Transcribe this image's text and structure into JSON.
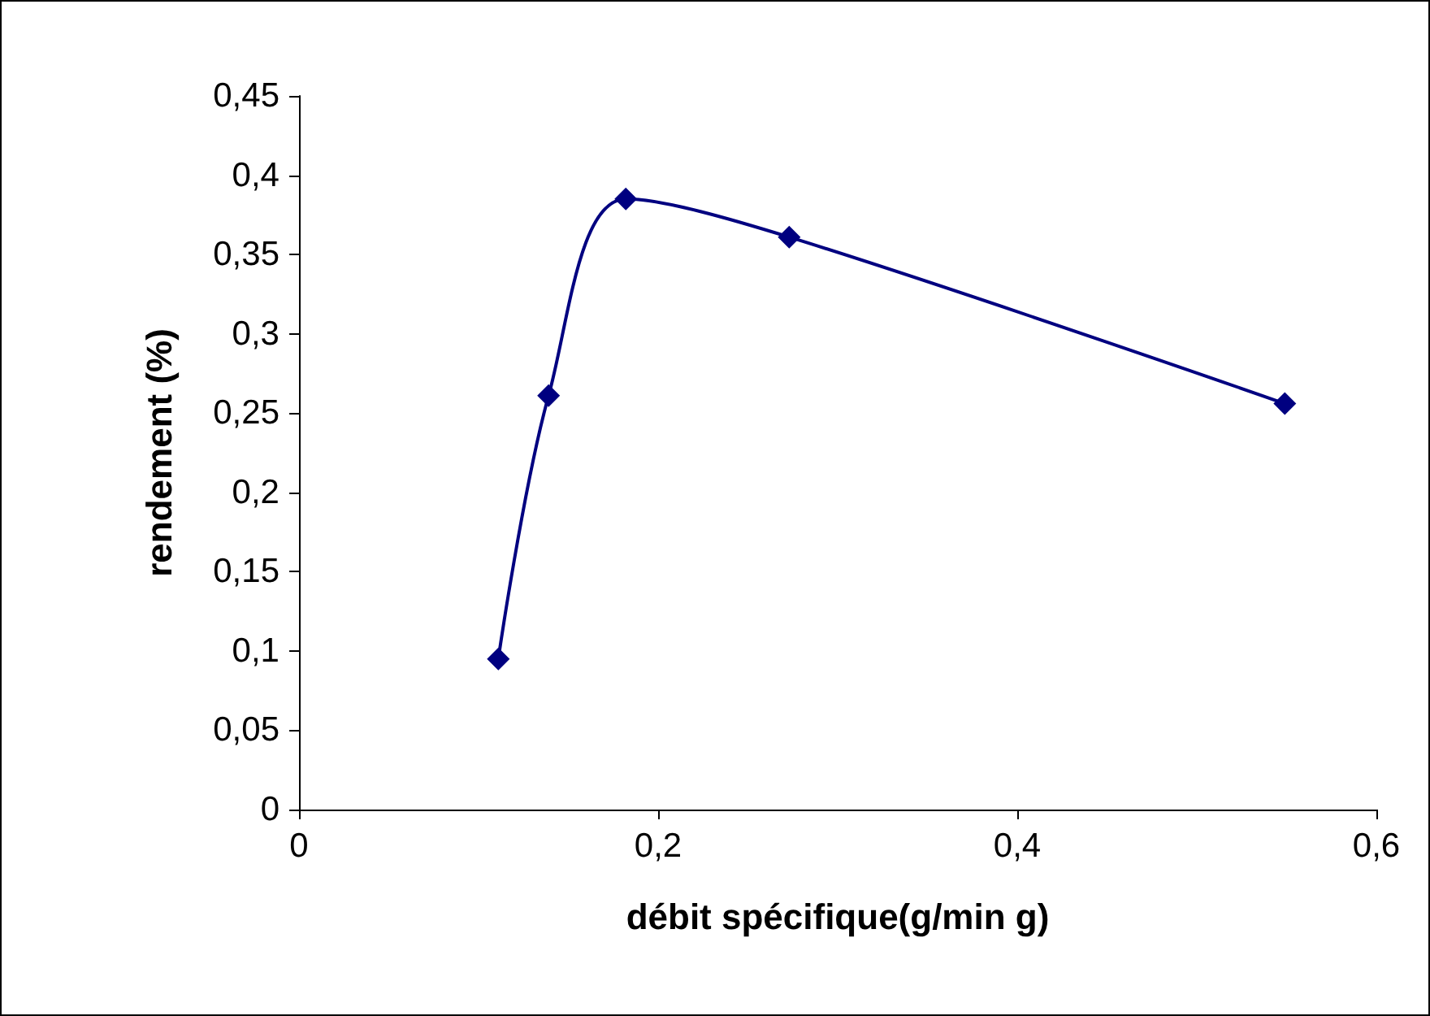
{
  "chart_data": {
    "type": "line",
    "xlabel": "débit spécifique(g/min g)",
    "ylabel": "rendement (%)",
    "x": [
      0.111,
      0.139,
      0.182,
      0.273,
      0.549
    ],
    "series": [
      {
        "color": "#000080",
        "values": [
          0.095,
          0.261,
          0.385,
          0.361,
          0.256
        ]
      }
    ],
    "xlim": [
      0,
      0.6
    ],
    "xticks": [
      {
        "value": 0,
        "label": "0"
      },
      {
        "value": 0.2,
        "label": "0,2"
      },
      {
        "value": 0.4,
        "label": "0,4"
      },
      {
        "value": 0.6,
        "label": "0,6"
      }
    ],
    "ylim": [
      0,
      0.45
    ],
    "yticks": [
      {
        "value": 0,
        "label": "0"
      },
      {
        "value": 0.05,
        "label": "0,05"
      },
      {
        "value": 0.1,
        "label": "0,1"
      },
      {
        "value": 0.15,
        "label": "0,15"
      },
      {
        "value": 0.2,
        "label": "0,2"
      },
      {
        "value": 0.25,
        "label": "0,25"
      },
      {
        "value": 0.3,
        "label": "0,3"
      },
      {
        "value": 0.35,
        "label": "0,35"
      },
      {
        "value": 0.4,
        "label": "0,4"
      },
      {
        "value": 0.45,
        "label": "0,45"
      }
    ],
    "grid": false,
    "marker": "diamond",
    "line_style": "solid"
  }
}
